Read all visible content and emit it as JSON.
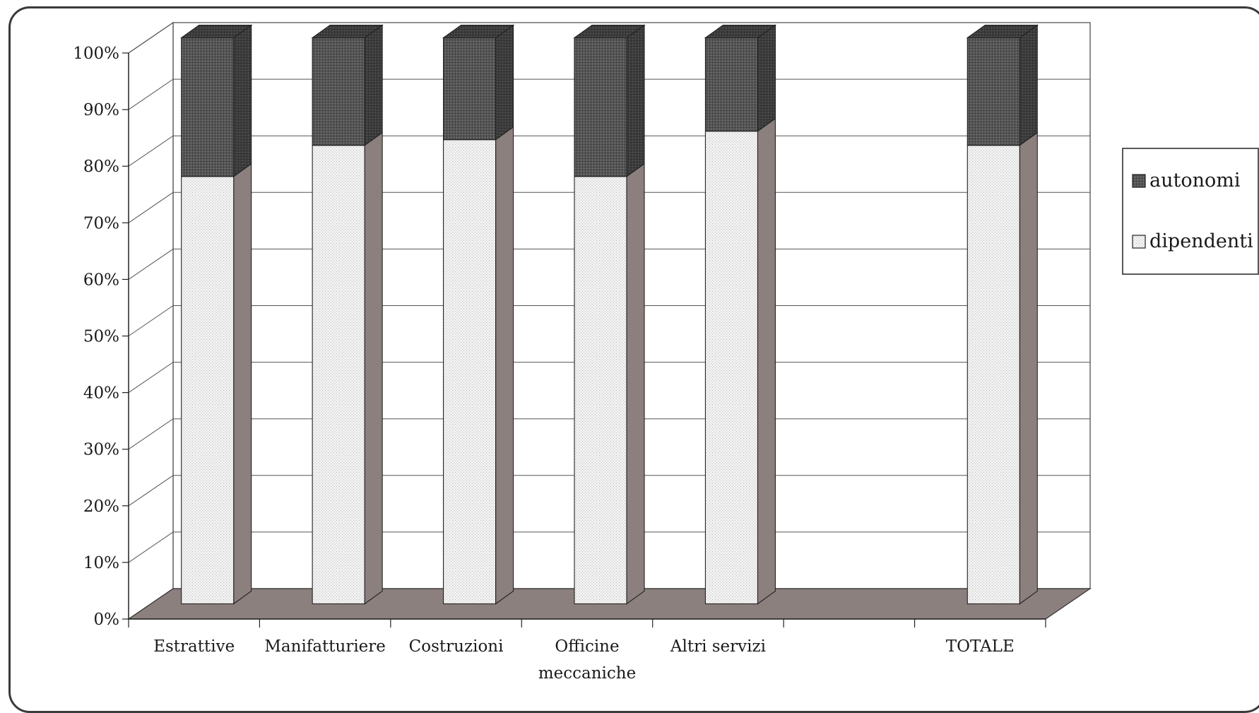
{
  "chart_data": {
    "type": "bar",
    "stacked": true,
    "percent_stacked": true,
    "three_d": true,
    "categories": [
      [
        "Estrattive"
      ],
      [
        "Manifatturiere"
      ],
      [
        "Costruzioni"
      ],
      [
        "Officine",
        "meccaniche"
      ],
      [
        "Altri servizi"
      ],
      [
        ""
      ],
      [
        "TOTALE"
      ]
    ],
    "series": [
      {
        "name": "dipendenti",
        "values": [
          75.5,
          81,
          82,
          75.5,
          83.5,
          null,
          81
        ]
      },
      {
        "name": "autonomi",
        "values": [
          24.5,
          19,
          18,
          24.5,
          16.5,
          null,
          19
        ]
      }
    ],
    "title": "",
    "xlabel": "",
    "ylabel": "",
    "ylim": [
      0,
      100
    ],
    "yticks": [
      "0%",
      "10%",
      "20%",
      "30%",
      "40%",
      "50%",
      "60%",
      "70%",
      "80%",
      "90%",
      "100%"
    ],
    "legend": {
      "position": "right",
      "entries": [
        "autonomi",
        "dipendenti"
      ]
    },
    "grid": true,
    "colors": {
      "dipendenti": "#eeeeee",
      "autonomi": "#4a4a4a",
      "floor": "#8c807e",
      "side": "#8c807e"
    }
  }
}
